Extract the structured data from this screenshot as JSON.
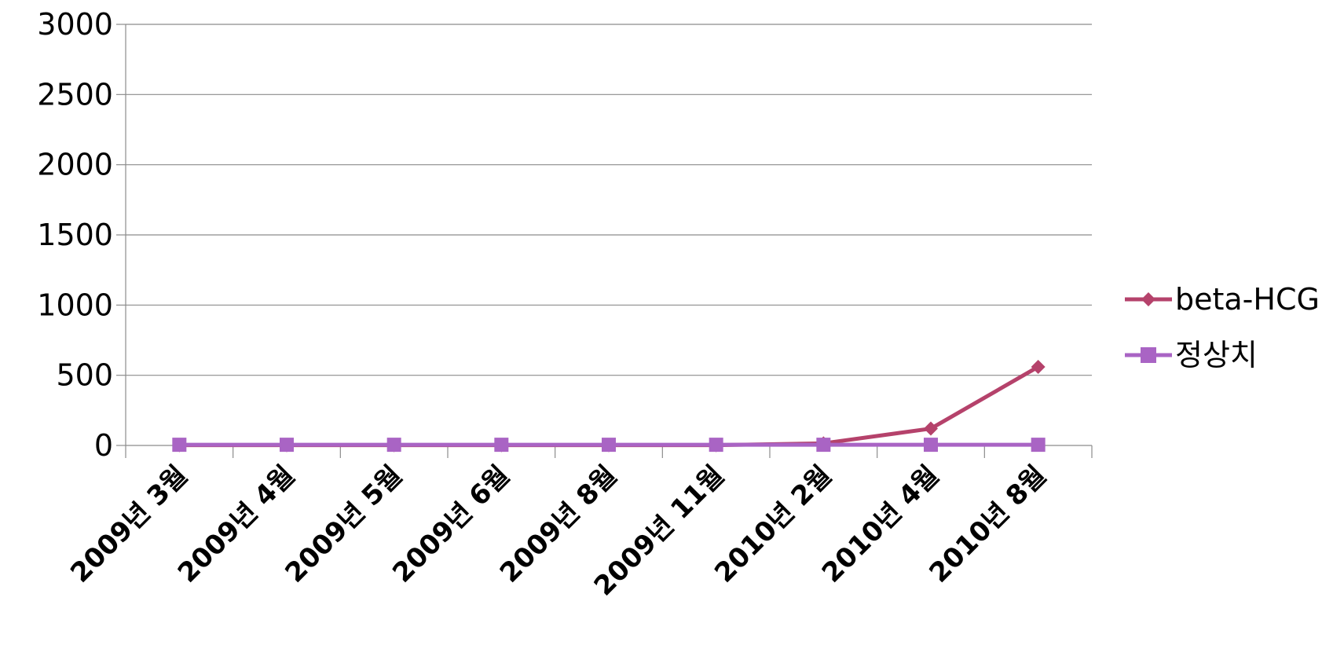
{
  "chart_data": {
    "type": "line",
    "categories": [
      "2009년 3월",
      "2009년 4월",
      "2009년 5월",
      "2009년 6월",
      "2009년 8월",
      "2009년 11월",
      "2010년 2월",
      "2010년 4월",
      "2010년 8월"
    ],
    "series": [
      {
        "name": "beta-HCG",
        "values": [
          2,
          2,
          2,
          2,
          2,
          2,
          15,
          120,
          560
        ],
        "color": "#b5426b",
        "marker": "diamond"
      },
      {
        "name": "정상치",
        "values": [
          5,
          5,
          5,
          5,
          5,
          5,
          5,
          5,
          5
        ],
        "color": "#a964c4",
        "marker": "square"
      }
    ],
    "ylim": [
      0,
      3000
    ],
    "yticks": [
      0,
      500,
      1000,
      1500,
      2000,
      2500,
      3000
    ],
    "grid": true,
    "legend": "right",
    "title": "",
    "xlabel": "",
    "ylabel": ""
  }
}
